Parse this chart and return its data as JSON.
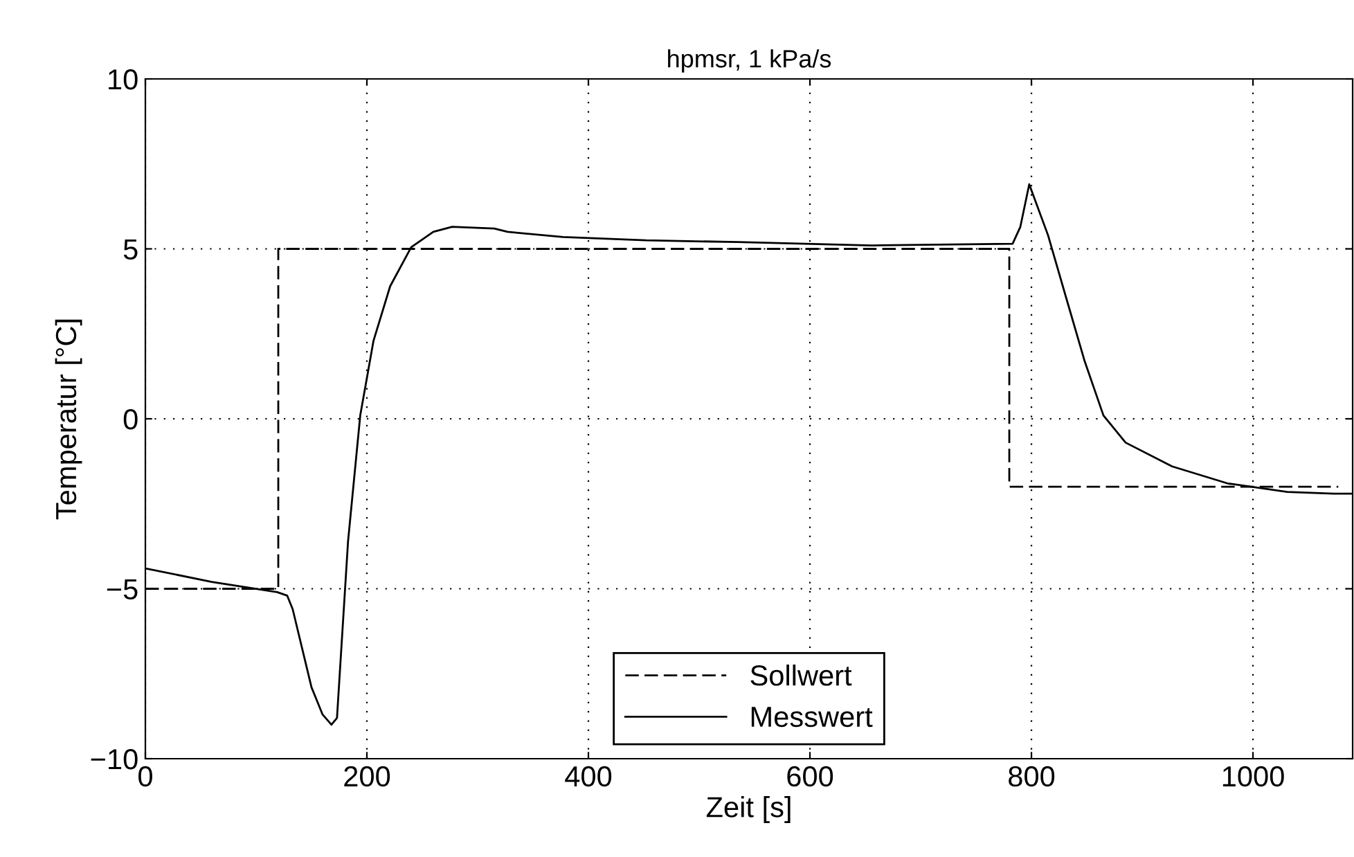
{
  "chart_data": {
    "type": "line",
    "title": "hpmsr, 1 kPa/s",
    "xlabel": "Zeit [s]",
    "ylabel": "Temperatur [°C]",
    "xlim": [
      0,
      1090
    ],
    "ylim": [
      -10,
      10
    ],
    "xticks": [
      0,
      200,
      400,
      600,
      800,
      1000
    ],
    "yticks": [
      -10,
      -5,
      0,
      5,
      10
    ],
    "grid": true,
    "legend": "bottom",
    "series": [
      {
        "name": "Sollwert",
        "color": "#000000",
        "line_style": "dashed",
        "x": [
          0,
          120,
          120,
          780,
          780,
          1077
        ],
        "values": [
          -5,
          -5,
          5,
          5,
          -2,
          -2
        ]
      },
      {
        "name": "Messwert",
        "color": "#000000",
        "line_style": "solid",
        "x": [
          0,
          60,
          119,
          128,
          133,
          150,
          160,
          168,
          173,
          183,
          194,
          206,
          221,
          240,
          260,
          277,
          315,
          327,
          377,
          452,
          535,
          656,
          783,
          790,
          798,
          815,
          831,
          848,
          865,
          885,
          927,
          977,
          1031,
          1073,
          1090
        ],
        "values": [
          -4.4,
          -4.8,
          -5.1,
          -5.2,
          -5.6,
          -7.9,
          -8.7,
          -9.0,
          -8.8,
          -3.6,
          0.1,
          2.3,
          3.9,
          5.05,
          5.5,
          5.65,
          5.6,
          5.5,
          5.35,
          5.25,
          5.2,
          5.1,
          5.15,
          5.65,
          6.9,
          5.4,
          3.6,
          1.7,
          0.1,
          -0.7,
          -1.4,
          -1.9,
          -2.15,
          -2.2,
          -2.2
        ]
      }
    ]
  }
}
